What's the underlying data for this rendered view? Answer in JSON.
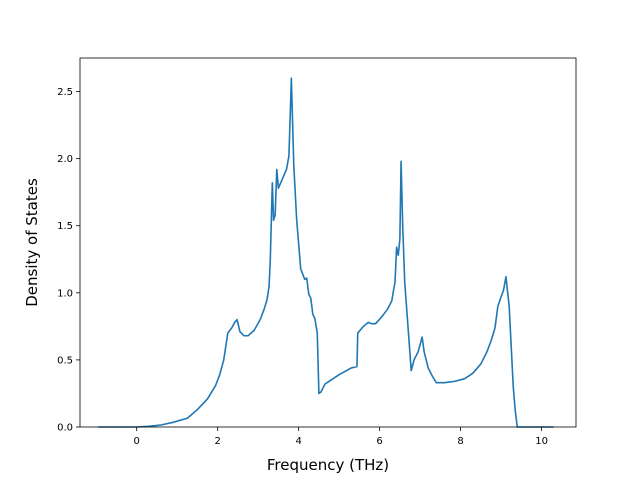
{
  "chart_data": {
    "type": "line",
    "title": "",
    "xlabel": "Frequency (THz)",
    "ylabel": "Density of States",
    "xlim": [
      -1.4,
      10.85
    ],
    "ylim": [
      0.0,
      2.75
    ],
    "xticks": [
      0,
      2,
      4,
      6,
      8,
      10
    ],
    "yticks": [
      0.0,
      0.5,
      1.0,
      1.5,
      2.0,
      2.5
    ],
    "xtick_labels": [
      "0",
      "2",
      "4",
      "6",
      "8",
      "10"
    ],
    "ytick_labels": [
      "0.0",
      "0.5",
      "1.0",
      "1.5",
      "2.0",
      "2.5"
    ],
    "grid": false,
    "legend": "none",
    "series": [
      {
        "color": "#1f77b4",
        "x": [
          -0.95,
          -0.5,
          0.0,
          0.3,
          0.6,
          0.9,
          1.25,
          1.5,
          1.75,
          1.95,
          2.05,
          2.15,
          2.25,
          2.35,
          2.42,
          2.48,
          2.55,
          2.65,
          2.75,
          2.9,
          3.05,
          3.15,
          3.22,
          3.27,
          3.3,
          3.35,
          3.38,
          3.42,
          3.46,
          3.5,
          3.6,
          3.7,
          3.76,
          3.82,
          3.88,
          3.95,
          4.05,
          4.15,
          4.2,
          4.25,
          4.3,
          4.35,
          4.4,
          4.46,
          4.5,
          4.55,
          4.65,
          4.8,
          5.0,
          5.3,
          5.44,
          5.46,
          5.6,
          5.72,
          5.8,
          5.9,
          6.05,
          6.2,
          6.3,
          6.35,
          6.38,
          6.42,
          6.46,
          6.5,
          6.53,
          6.57,
          6.62,
          6.7,
          6.78,
          6.85,
          6.95,
          7.05,
          7.1,
          7.2,
          7.3,
          7.4,
          7.6,
          7.85,
          8.1,
          8.3,
          8.5,
          8.65,
          8.75,
          8.85,
          8.92,
          9.0,
          9.06,
          9.12,
          9.2,
          9.3,
          9.35,
          9.4,
          9.6,
          10.3
        ],
        "y": [
          0.0,
          0.0,
          0.0,
          0.005,
          0.015,
          0.035,
          0.065,
          0.13,
          0.21,
          0.31,
          0.39,
          0.5,
          0.7,
          0.74,
          0.78,
          0.8,
          0.71,
          0.68,
          0.68,
          0.72,
          0.8,
          0.88,
          0.95,
          1.05,
          1.25,
          1.82,
          1.54,
          1.58,
          1.92,
          1.78,
          1.85,
          1.92,
          2.02,
          2.6,
          1.95,
          1.55,
          1.18,
          1.1,
          1.11,
          0.99,
          0.96,
          0.84,
          0.81,
          0.7,
          0.25,
          0.26,
          0.32,
          0.35,
          0.39,
          0.44,
          0.45,
          0.7,
          0.75,
          0.78,
          0.77,
          0.77,
          0.82,
          0.88,
          0.94,
          1.03,
          1.08,
          1.34,
          1.28,
          1.4,
          1.98,
          1.5,
          1.08,
          0.75,
          0.42,
          0.5,
          0.56,
          0.67,
          0.56,
          0.44,
          0.38,
          0.33,
          0.33,
          0.34,
          0.36,
          0.4,
          0.47,
          0.56,
          0.64,
          0.74,
          0.9,
          0.97,
          1.02,
          1.12,
          0.9,
          0.3,
          0.12,
          0.0,
          0.0,
          0.0
        ]
      }
    ]
  }
}
